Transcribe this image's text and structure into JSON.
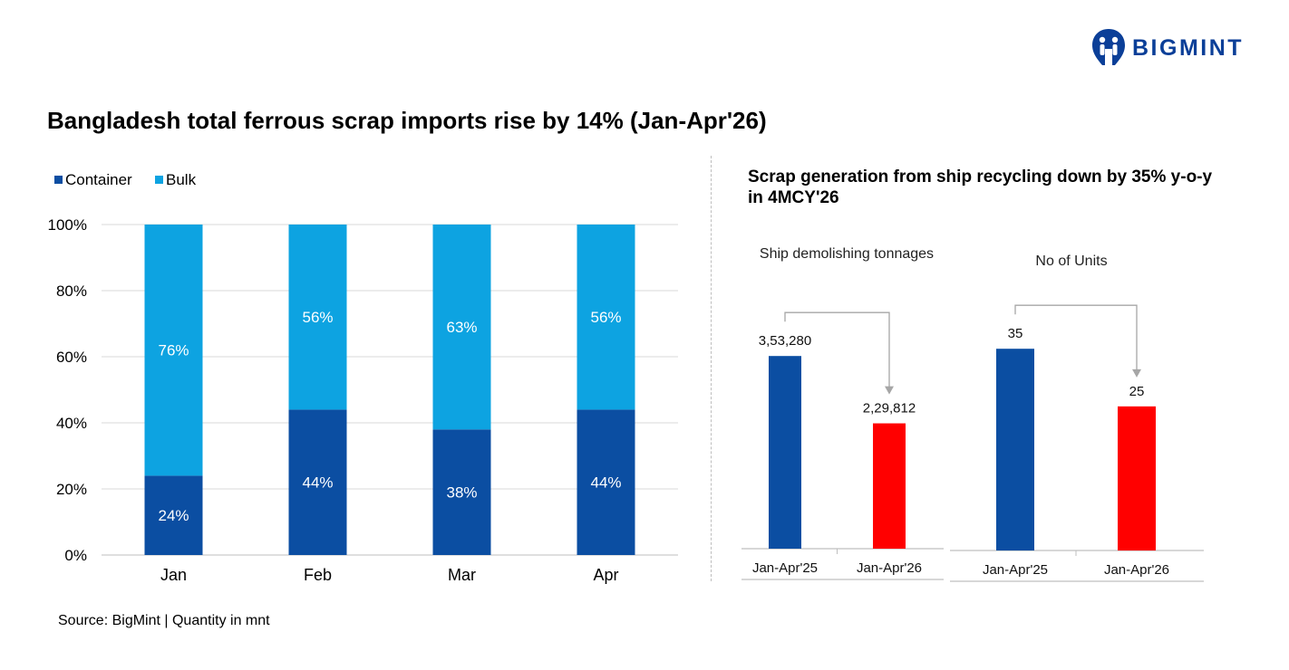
{
  "brand": {
    "name": "BIGMINT",
    "logo_icon": "bigmint-logo-icon",
    "color": "#0b3f98"
  },
  "title": "Bangladesh total ferrous scrap imports rise by 14% (Jan-Apr'26)",
  "right_title": "Scrap generation from ship recycling down by 35% y-o-y in 4MCY'26",
  "source": "Source: BigMint | Quantity in mnt",
  "chart_data": [
    {
      "type": "bar",
      "stacked": true,
      "categories": [
        "Jan",
        "Feb",
        "Mar",
        "Apr"
      ],
      "series": [
        {
          "name": "Container",
          "values": [
            24,
            44,
            38,
            44
          ],
          "labels": [
            "24%",
            "44%",
            "38%",
            "44%"
          ],
          "color": "#0b4ea2"
        },
        {
          "name": "Bulk",
          "values": [
            76,
            56,
            63,
            56
          ],
          "labels": [
            "76%",
            "56%",
            "63%",
            "56%"
          ],
          "color": "#0da3e1"
        }
      ],
      "ylim": [
        0,
        100
      ],
      "yticks": [
        "0%",
        "20%",
        "40%",
        "60%",
        "80%",
        "100%"
      ],
      "ytick_values": [
        0,
        20,
        40,
        60,
        80,
        100
      ],
      "legend": "top-left",
      "grid": true
    },
    {
      "type": "bar",
      "title": "Ship demolishing tonnages",
      "categories": [
        "Jan-Apr'25",
        "Jan-Apr'26"
      ],
      "values": [
        353280,
        229812
      ],
      "labels": [
        "3,53,280",
        "2,29,812"
      ],
      "colors": [
        "#0b4ea2",
        "#ff0000"
      ],
      "ylim": [
        0,
        420000
      ],
      "grid": false
    },
    {
      "type": "bar",
      "title": "No of Units",
      "categories": [
        "Jan-Apr'25",
        "Jan-Apr'26"
      ],
      "values": [
        35,
        25
      ],
      "labels": [
        "35",
        "25"
      ],
      "colors": [
        "#0b4ea2",
        "#ff0000"
      ],
      "ylim": [
        0,
        41
      ],
      "grid": false
    }
  ]
}
